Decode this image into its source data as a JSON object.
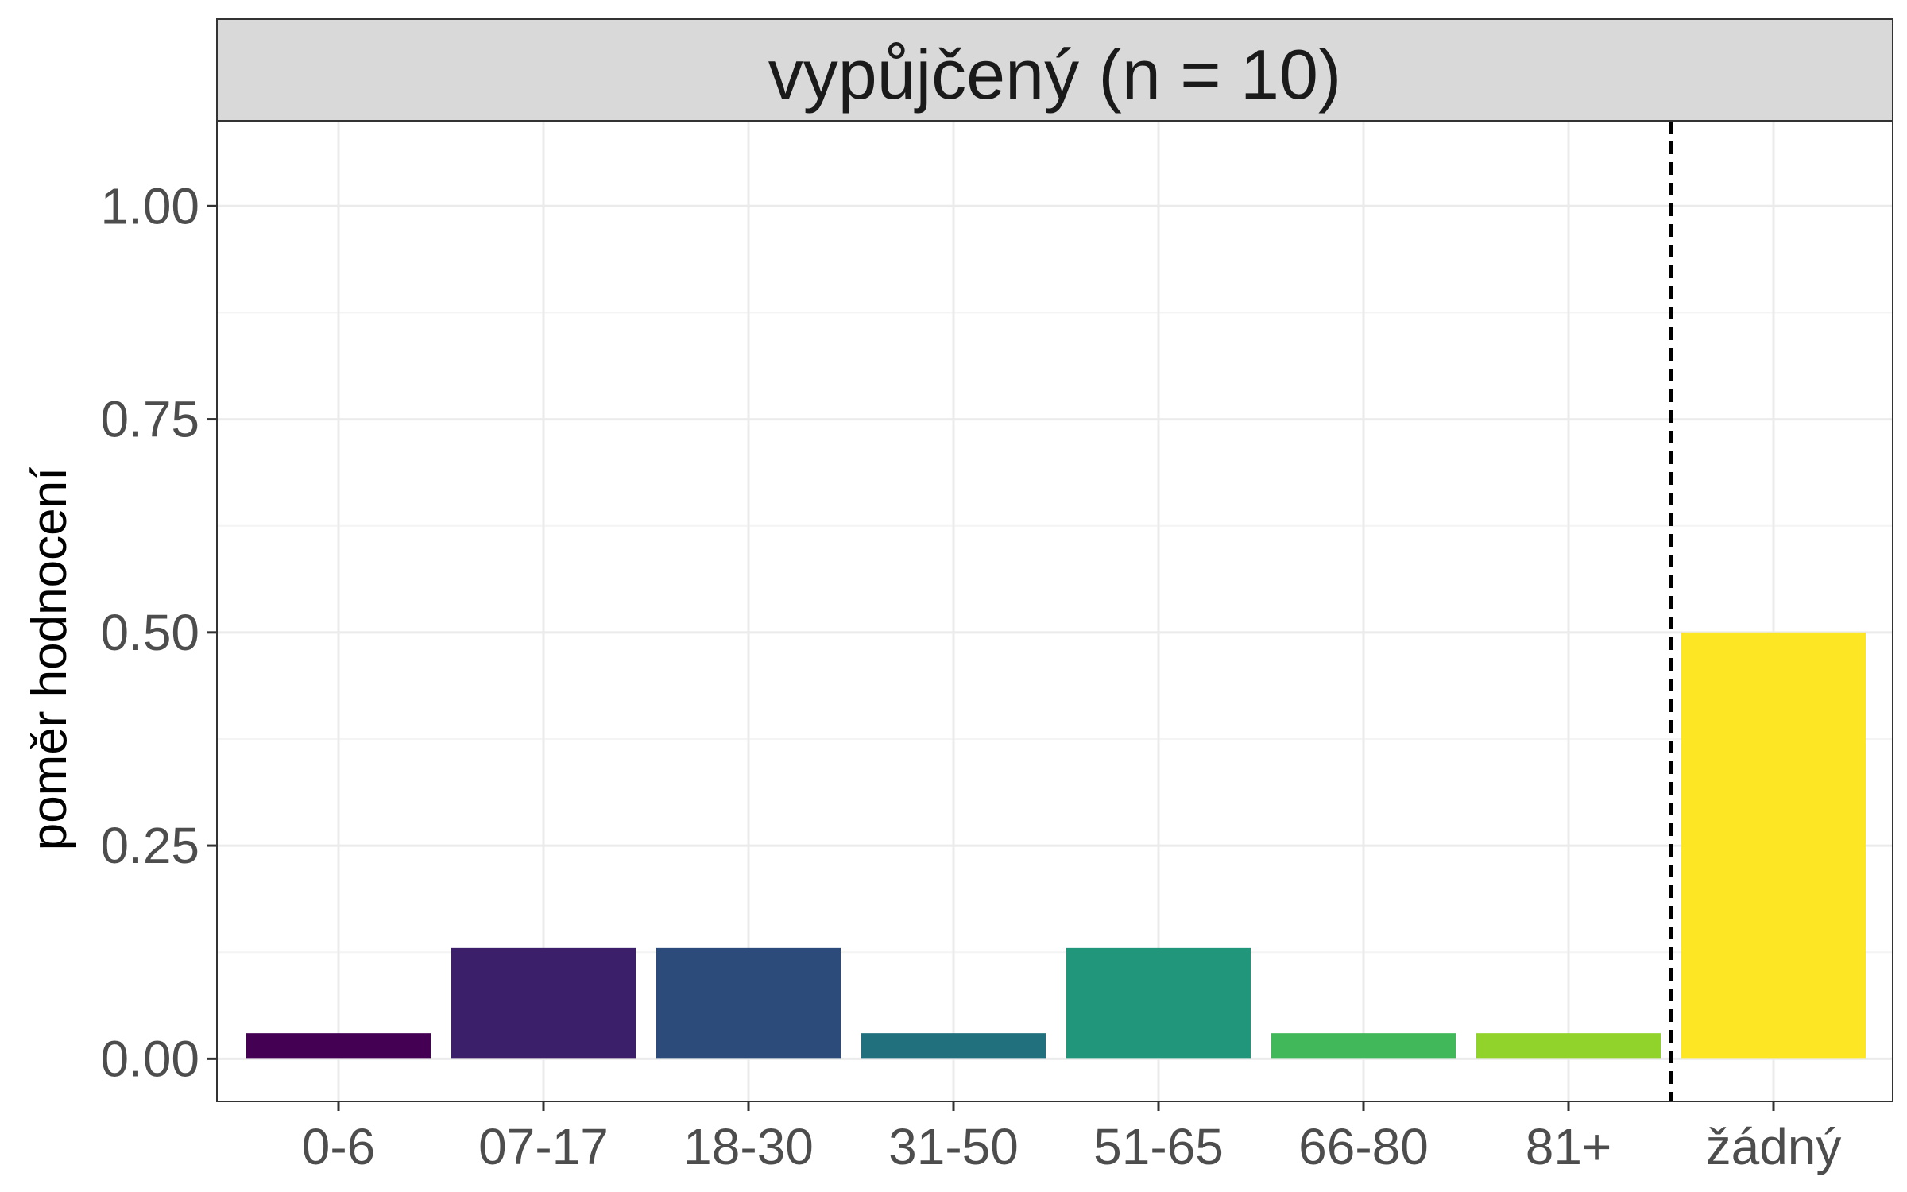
{
  "chart_data": {
    "type": "bar",
    "facet_title": "vypůjčený (n = 10)",
    "xlabel": "",
    "ylabel": "poměr hodnocení",
    "categories": [
      "0-6",
      "07-17",
      "18-30",
      "31-50",
      "51-65",
      "66-80",
      "81+",
      "žádný"
    ],
    "values": [
      0.03,
      0.13,
      0.13,
      0.03,
      0.13,
      0.03,
      0.03,
      0.5
    ],
    "colors": [
      "#440154",
      "#3b1f6b",
      "#2d4b7a",
      "#21707e",
      "#22967a",
      "#41b95a",
      "#91d32a",
      "#fde725"
    ],
    "ylim": [
      -0.05,
      1.1
    ],
    "yticks": [
      0.0,
      0.25,
      0.5,
      0.75,
      1.0
    ],
    "ytick_labels": [
      "0.00",
      "0.25",
      "0.50",
      "0.75",
      "1.00"
    ],
    "reference_line": {
      "between_categories": [
        "81+",
        "žádný"
      ],
      "style": "dashed",
      "color": "#000000"
    },
    "grid": true,
    "legend": "none",
    "theme": {
      "panel_border": "#333333",
      "strip_fill": "#d9d9d9",
      "grid_major": "#ebebeb",
      "grid_minor": "#f4f4f4",
      "tick_color": "#333333"
    }
  }
}
